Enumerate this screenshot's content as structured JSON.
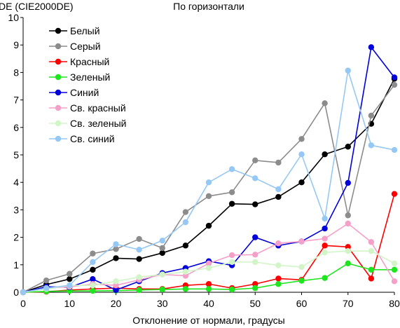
{
  "chart_data": {
    "type": "line",
    "title": "По горизонтали",
    "ylabel": "DE (CIE2000DE)",
    "xlabel": "Отклонение от нормали, градусы",
    "xlim": [
      0,
      80
    ],
    "ylim": [
      0,
      10
    ],
    "x_ticks": [
      "0",
      "10",
      "20",
      "30",
      "40",
      "50",
      "60",
      "70",
      "80"
    ],
    "y_ticks": [
      "0",
      "1",
      "2",
      "3",
      "4",
      "5",
      "6",
      "7",
      "8",
      "9",
      "10"
    ],
    "grid": false,
    "legend_position": "top-left",
    "x": [
      0,
      5,
      10,
      15,
      20,
      25,
      30,
      35,
      40,
      45,
      50,
      55,
      60,
      65,
      70,
      75,
      80
    ],
    "series": [
      {
        "name": "Белый",
        "color": "#000000",
        "values": [
          0.0,
          0.28,
          0.48,
          0.82,
          1.24,
          1.21,
          1.43,
          1.7,
          2.42,
          3.22,
          3.2,
          3.47,
          4.0,
          5.02,
          5.3,
          6.13,
          7.77
        ]
      },
      {
        "name": "Серый",
        "color": "#8c8c8c",
        "values": [
          0.0,
          0.43,
          0.67,
          1.41,
          1.57,
          1.94,
          1.61,
          2.92,
          3.5,
          3.64,
          4.8,
          4.72,
          5.58,
          6.88,
          2.8,
          6.43,
          7.55
        ]
      },
      {
        "name": "Красный",
        "color": "#ff0000",
        "values": [
          0.0,
          0.02,
          0.08,
          0.12,
          0.15,
          0.12,
          0.12,
          0.25,
          0.3,
          0.15,
          0.3,
          0.5,
          0.45,
          1.7,
          1.65,
          0.5,
          3.58
        ]
      },
      {
        "name": "Зеленый",
        "color": "#1ee61e",
        "values": [
          0.0,
          0.03,
          0.05,
          0.05,
          0.06,
          0.08,
          0.1,
          0.12,
          0.12,
          0.1,
          0.15,
          0.3,
          0.42,
          0.52,
          1.05,
          0.82,
          0.82
        ]
      },
      {
        "name": "Синий",
        "color": "#0000dc",
        "values": [
          0.0,
          0.2,
          0.18,
          0.48,
          0.08,
          0.4,
          0.7,
          0.88,
          1.13,
          0.98,
          2.0,
          1.7,
          1.85,
          2.32,
          3.98,
          8.92,
          7.82
        ]
      },
      {
        "name": "Св. красный",
        "color": "#f5a0c8",
        "values": [
          0.0,
          0.15,
          0.2,
          0.3,
          0.25,
          0.45,
          0.65,
          0.6,
          1.05,
          1.35,
          1.37,
          1.78,
          1.85,
          1.95,
          2.5,
          1.83,
          0.4
        ]
      },
      {
        "name": "Св. зеленый",
        "color": "#d2f5c8",
        "values": [
          0.0,
          0.12,
          0.25,
          0.25,
          0.4,
          0.55,
          0.65,
          0.75,
          0.88,
          1.1,
          1.1,
          0.98,
          0.92,
          1.45,
          1.5,
          1.5,
          1.05
        ]
      },
      {
        "name": "Св. синий",
        "color": "#96c8f5",
        "values": [
          0.0,
          0.15,
          0.25,
          1.1,
          1.75,
          1.55,
          1.88,
          2.55,
          4.0,
          4.48,
          4.15,
          3.75,
          5.02,
          2.68,
          8.07,
          5.35,
          5.18
        ]
      }
    ]
  }
}
